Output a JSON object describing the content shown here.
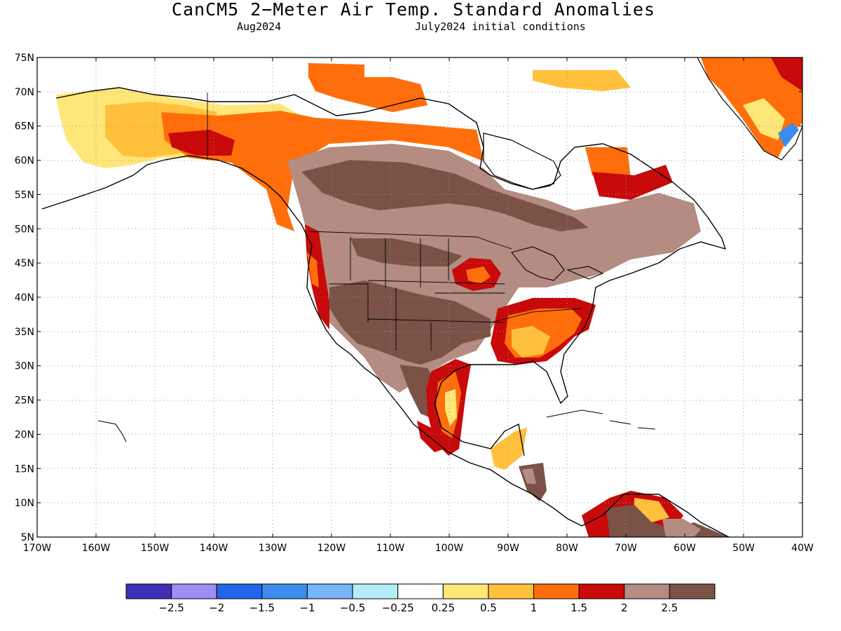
{
  "title": "CanCM5 2−Meter Air Temp. Standard Anomalies",
  "subtitle_left": "Aug2024",
  "subtitle_right": "July2024 initial conditions",
  "map": {
    "lon_range": [
      -170,
      -40
    ],
    "lat_range": [
      5,
      75
    ],
    "lon_ticks": [
      "170W",
      "160W",
      "150W",
      "140W",
      "130W",
      "120W",
      "110W",
      "100W",
      "90W",
      "80W",
      "70W",
      "60W",
      "50W",
      "40W"
    ],
    "lat_ticks": [
      "75N",
      "70N",
      "65N",
      "60N",
      "55N",
      "50N",
      "45N",
      "40N",
      "35N",
      "30N",
      "25N",
      "20N",
      "15N",
      "10N",
      "5N"
    ],
    "grid": "dotted"
  },
  "colorbar": {
    "colors": [
      "#3f2fb9",
      "#a08cf5",
      "#2166e8",
      "#3c8cf0",
      "#78b4f8",
      "#b4eefa",
      "#ffffff",
      "#ffe678",
      "#ffc03c",
      "#ff6e0a",
      "#c80a0a",
      "#b48c82",
      "#7a5246"
    ],
    "labels": [
      "−2.5",
      "−2",
      "−1.5",
      "−1",
      "−0.5",
      "−0.25",
      "0.25",
      "0.5",
      "1",
      "1.5",
      "2",
      "2.5"
    ]
  },
  "colors": {
    "ocean": "#ffffff",
    "land_outline": "#000000"
  }
}
